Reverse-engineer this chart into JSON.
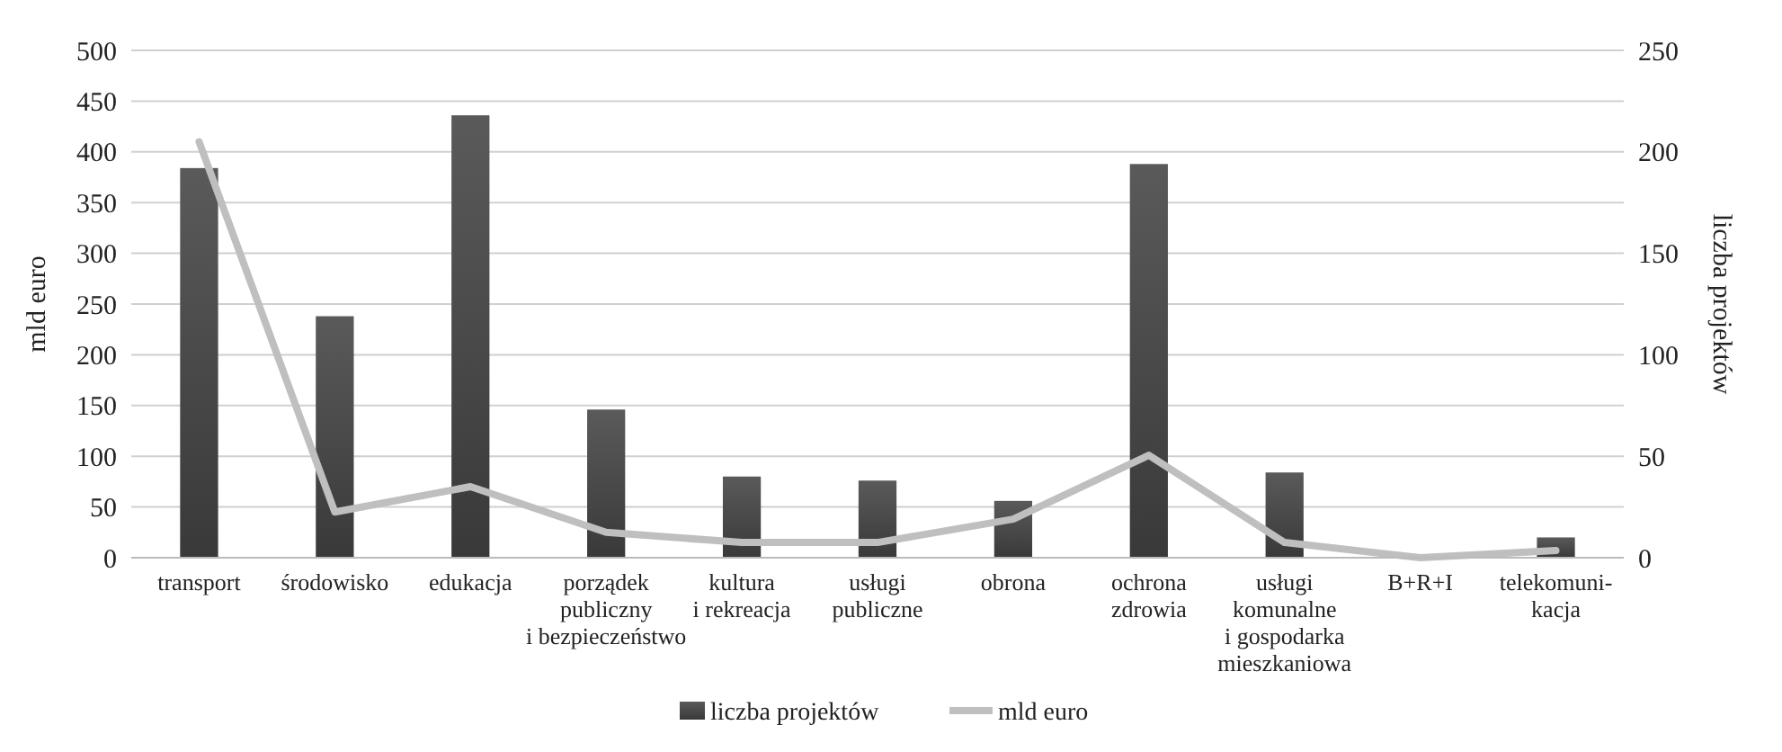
{
  "chart_data": {
    "type": "bar",
    "ylabel": "mld euro",
    "y2label": "liczba projektów",
    "categories": [
      "transport",
      "środowisko",
      "edukacja",
      "porządek\npubliczny\ni bezpieczeństwo",
      "kultura\ni rekreacja",
      "usługi\npubliczne",
      "obrona",
      "ochrona\nzdrowia",
      "usługi\nkomunalne\ni gospodarka\nmieszkaniowa",
      "B+R+I",
      "telekomuni-\nkacja"
    ],
    "series": [
      {
        "name": "liczba projektów",
        "axis": "y2",
        "color": "#444444",
        "values": [
          192,
          119,
          218,
          73,
          40,
          38,
          28,
          194,
          42,
          0,
          10
        ]
      },
      {
        "name": "mld euro",
        "type": "line",
        "axis": "y",
        "color": "#bfbfbf",
        "values": [
          410,
          45,
          70,
          25,
          15,
          15,
          38,
          101,
          15,
          0,
          7
        ]
      }
    ],
    "ylim": [
      0,
      500
    ],
    "yticks": [
      0,
      50,
      100,
      150,
      200,
      250,
      300,
      350,
      400,
      450,
      500
    ],
    "y2lim": [
      0,
      250
    ],
    "y2ticks": [
      0,
      50,
      100,
      150,
      200,
      250
    ],
    "grid": "y",
    "legend": "bottom",
    "marker": "none",
    "line_style": "solid"
  }
}
